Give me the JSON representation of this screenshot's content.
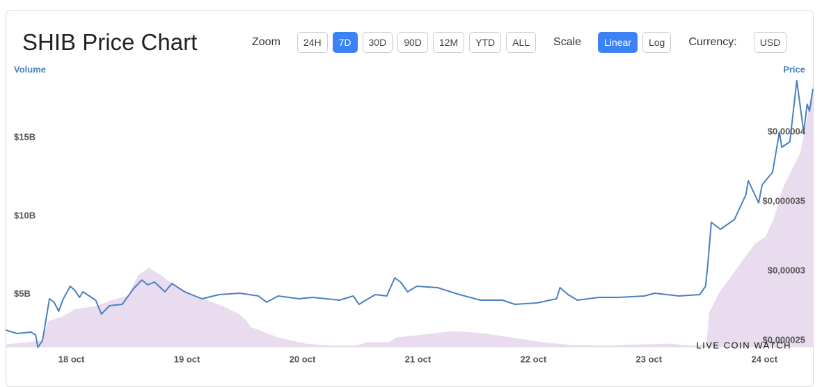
{
  "controls": {
    "zoom_label": "Zoom",
    "zoom": [
      {
        "label": "24H",
        "active": false
      },
      {
        "label": "7D",
        "active": true
      },
      {
        "label": "30D",
        "active": false
      },
      {
        "label": "90D",
        "active": false
      },
      {
        "label": "12M",
        "active": false
      },
      {
        "label": "YTD",
        "active": false
      },
      {
        "label": "ALL",
        "active": false
      }
    ],
    "scale_label": "Scale",
    "scale": [
      {
        "label": "Linear",
        "active": true
      },
      {
        "label": "Log",
        "active": false
      }
    ],
    "currency_label": "Currency:",
    "currency": [
      {
        "label": "USD",
        "active": false
      }
    ]
  },
  "watermark": "LIVE COIN WATCH",
  "chart_data": {
    "type": "line",
    "title": "SHIB Price Chart",
    "ylabel": "Volume",
    "y2label": "Price",
    "xlim": [
      17.43,
      24.42
    ],
    "xticks": [
      {
        "value": 18,
        "label": "18 oct"
      },
      {
        "value": 19,
        "label": "19 oct"
      },
      {
        "value": 20,
        "label": "20 oct"
      },
      {
        "value": 21,
        "label": "21 oct"
      },
      {
        "value": 22,
        "label": "22 oct"
      },
      {
        "value": 23,
        "label": "23 oct"
      },
      {
        "value": 24,
        "label": "24 oct"
      }
    ],
    "ylim": [
      1.6,
      18.7
    ],
    "yticks": [
      {
        "value": 5,
        "label": "$5B"
      },
      {
        "value": 10,
        "label": "$10B"
      },
      {
        "value": 15,
        "label": "$15B"
      }
    ],
    "y2lim": [
      2.45e-05,
      4.375e-05
    ],
    "y2ticks": [
      {
        "value": 2.5e-05,
        "label": "$0,000025"
      },
      {
        "value": 3e-05,
        "label": "$0,00003"
      },
      {
        "value": 3.5e-05,
        "label": "$0,000035"
      },
      {
        "value": 4e-05,
        "label": "$0,00004"
      }
    ],
    "grid": false,
    "series": [
      {
        "type": "area",
        "color": "#e9dcef",
        "x": [
          17.43,
          17.74,
          17.8,
          17.92,
          18.04,
          18.22,
          18.34,
          18.49,
          18.58,
          18.67,
          18.77,
          18.89,
          19.07,
          19.31,
          19.46,
          19.52,
          19.55,
          19.79,
          20.03,
          20.27,
          20.45,
          20.57,
          20.75,
          20.81,
          20.99,
          21.3,
          21.48,
          21.6,
          21.84,
          22.08,
          22.32,
          22.62,
          22.8,
          23.16,
          23.4,
          23.5,
          23.52,
          23.61,
          23.7,
          23.83,
          23.92,
          24.01,
          24.08,
          24.16,
          24.25,
          24.31,
          24.37,
          24.42
        ],
        "values": [
          1.8,
          2.02,
          3.27,
          3.58,
          4.07,
          4.24,
          4.6,
          4.91,
          6.24,
          6.69,
          6.24,
          5.58,
          4.91,
          4.24,
          3.71,
          3.27,
          2.91,
          2.24,
          1.84,
          1.71,
          1.71,
          1.93,
          1.93,
          2.24,
          2.38,
          2.64,
          2.56,
          2.47,
          2.2,
          1.93,
          1.76,
          1.71,
          1.76,
          1.84,
          1.71,
          1.8,
          3.8,
          5.13,
          6.02,
          7.36,
          8.24,
          8.69,
          9.8,
          11.8,
          13.13,
          14.02,
          16.24,
          18.47
        ]
      },
      {
        "type": "line",
        "color": "#4a7fc1",
        "axis": "y2",
        "x": [
          17.43,
          17.53,
          17.65,
          17.69,
          17.71,
          17.75,
          17.81,
          17.85,
          17.89,
          17.93,
          17.99,
          18.03,
          18.07,
          18.1,
          18.21,
          18.26,
          18.33,
          18.44,
          18.54,
          18.61,
          18.66,
          18.72,
          18.81,
          18.87,
          18.98,
          19.13,
          19.28,
          19.46,
          19.62,
          19.69,
          19.79,
          19.97,
          20.09,
          20.32,
          20.44,
          20.49,
          20.63,
          20.73,
          20.8,
          20.85,
          20.91,
          20.99,
          21.17,
          21.36,
          21.54,
          21.73,
          21.84,
          22.03,
          22.2,
          22.23,
          22.3,
          22.38,
          22.57,
          22.74,
          22.96,
          23.05,
          23.26,
          23.44,
          23.49,
          23.51,
          23.54,
          23.62,
          23.74,
          23.84,
          23.86,
          23.95,
          23.98,
          24.07,
          24.13,
          24.15,
          24.22,
          24.28,
          24.34,
          24.37,
          24.39,
          24.42
        ],
        "values": [
          2.575e-05,
          2.55e-05,
          2.56e-05,
          2.54e-05,
          2.45e-05,
          2.5e-05,
          2.8e-05,
          2.775e-05,
          2.71e-05,
          2.8e-05,
          2.89e-05,
          2.86e-05,
          2.81e-05,
          2.85e-05,
          2.79e-05,
          2.69e-05,
          2.75e-05,
          2.76e-05,
          2.875e-05,
          2.935e-05,
          2.9e-05,
          2.92e-05,
          2.85e-05,
          2.91e-05,
          2.85e-05,
          2.8e-05,
          2.83e-05,
          2.84e-05,
          2.82e-05,
          2.775e-05,
          2.82e-05,
          2.8e-05,
          2.81e-05,
          2.79e-05,
          2.82e-05,
          2.76e-05,
          2.83e-05,
          2.82e-05,
          2.95e-05,
          2.92e-05,
          2.85e-05,
          2.89e-05,
          2.88e-05,
          2.83e-05,
          2.79e-05,
          2.79e-05,
          2.76e-05,
          2.77e-05,
          2.8e-05,
          2.88e-05,
          2.83e-05,
          2.79e-05,
          2.81e-05,
          2.81e-05,
          2.82e-05,
          2.84e-05,
          2.82e-05,
          2.83e-05,
          2.89e-05,
          3.05e-05,
          3.35e-05,
          3.3e-05,
          3.37e-05,
          3.55e-05,
          3.65e-05,
          3.49e-05,
          3.62e-05,
          3.71e-05,
          4e-05,
          3.89e-05,
          3.93e-05,
          4.37e-05,
          4e-05,
          4.2e-05,
          4.15e-05,
          4.31e-05
        ]
      }
    ]
  }
}
